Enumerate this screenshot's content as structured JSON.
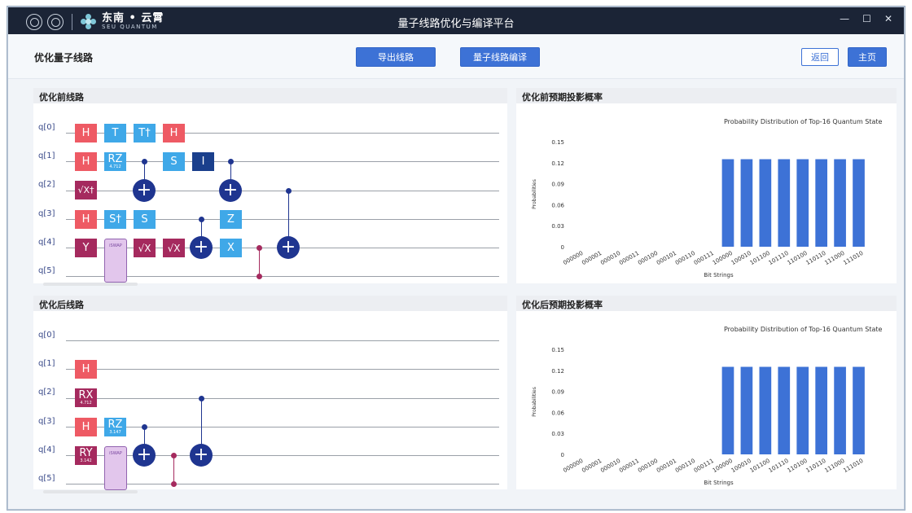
{
  "window": {
    "title": "量子线路优化与编译平台",
    "brand_cn": "东南 • 云霄",
    "brand_en": "SEU QUANTUM",
    "controls": [
      "—",
      "☐",
      "✕"
    ]
  },
  "toolbar": {
    "page_title": "优化量子线路",
    "export_label": "导出线路",
    "compile_label": "量子线路编译",
    "back_label": "返回",
    "home_label": "主页"
  },
  "colors": {
    "primary": "#3d72d6",
    "gate_h": "#ee5a64",
    "gate_single": "#3fa8e8",
    "gate_sqrt": "#a52a5e",
    "gate_i": "#1a3f8c",
    "cnot": "#1f3590",
    "bar": "#3d72d6"
  },
  "before_circuit": {
    "title": "优化前线路",
    "qubits": [
      "q[0]",
      "q[1]",
      "q[2]",
      "q[3]",
      "q[4]",
      "q[5]"
    ],
    "gate_labels": {
      "H": "H",
      "T": "T",
      "Tdg": "T†",
      "RZ": "RZ",
      "RZ_param": "4.712",
      "S": "S",
      "I": "I",
      "SXdg": "√X†",
      "Sdg": "S†",
      "Y": "Y",
      "SX": "√X",
      "Z": "Z",
      "X": "X",
      "ISWAP": "iSWAP",
      "CNOT": "+"
    }
  },
  "after_circuit": {
    "title": "优化后线路",
    "qubits": [
      "q[0]",
      "q[1]",
      "q[2]",
      "q[3]",
      "q[4]",
      "q[5]"
    ],
    "gate_labels": {
      "H": "H",
      "RX": "RX",
      "RX_param": "4.712",
      "RZ": "RZ",
      "RZ_param": "3.147",
      "RY": "RY",
      "RY_param": "3.142",
      "ISWAP": "iSWAP",
      "CNOT": "+"
    }
  },
  "before_chart": {
    "title": "优化前预期投影概率",
    "chart_data": {
      "type": "bar",
      "title": "Probability Distribution of Top-16 Quantum State",
      "xlabel": "Bit Strings",
      "ylabel": "Probabilities",
      "categories": [
        "000000",
        "000001",
        "000010",
        "000011",
        "000100",
        "000101",
        "000110",
        "000111",
        "100000",
        "100010",
        "101100",
        "101110",
        "110100",
        "110110",
        "111000",
        "111010"
      ],
      "values": [
        0,
        0,
        0,
        0,
        0,
        0,
        0,
        0,
        0.125,
        0.125,
        0.125,
        0.125,
        0.125,
        0.125,
        0.125,
        0.125
      ],
      "yticks": [
        "0",
        "0.03",
        "0.06",
        "0.09",
        "0.12",
        "0.15"
      ],
      "ylim": [
        0,
        0.15
      ]
    }
  },
  "after_chart": {
    "title": "优化后预期投影概率",
    "chart_data": {
      "type": "bar",
      "title": "Probability Distribution of Top-16 Quantum State",
      "xlabel": "Bit Strings",
      "ylabel": "Probabilities",
      "categories": [
        "000000",
        "000001",
        "000010",
        "000011",
        "000100",
        "000101",
        "000110",
        "000111",
        "100000",
        "100010",
        "101100",
        "101110",
        "110100",
        "110110",
        "111000",
        "111010"
      ],
      "values": [
        0,
        0,
        0,
        0,
        0,
        0,
        0,
        0,
        0.125,
        0.125,
        0.125,
        0.125,
        0.125,
        0.125,
        0.125,
        0.125
      ],
      "yticks": [
        "0",
        "0.03",
        "0.06",
        "0.09",
        "0.12",
        "0.15"
      ],
      "ylim": [
        0,
        0.15
      ]
    }
  }
}
